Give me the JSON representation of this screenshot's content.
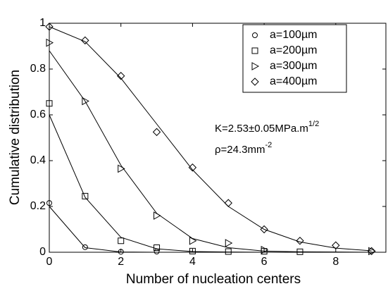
{
  "chart_data": {
    "type": "scatter",
    "x_label": "Number of nucleation centers",
    "y_label": "Cumulative distribution",
    "x": [
      0,
      1,
      2,
      3,
      4,
      5,
      6,
      7,
      8,
      9
    ],
    "series": [
      {
        "name": "a=100µm",
        "marker": "circle",
        "color": "#000000",
        "values": [
          0.215,
          0.022,
          0.002,
          0.003,
          null,
          null,
          null,
          null,
          null,
          null
        ],
        "fit": [
          0.2,
          0.02,
          0.001,
          0,
          0,
          0,
          0,
          0,
          0,
          0
        ]
      },
      {
        "name": "a=200µm",
        "marker": "square",
        "color": "#000000",
        "values": [
          0.65,
          0.245,
          0.05,
          0.02,
          0.005,
          0.003,
          0.004,
          0.002,
          null,
          null
        ],
        "fit": [
          0.6,
          0.24,
          0.065,
          0.015,
          0.003,
          0.001,
          0,
          0,
          0,
          0
        ]
      },
      {
        "name": "a=300µm",
        "marker": "triangle-right",
        "color": "#000000",
        "values": [
          0.915,
          0.66,
          0.365,
          0.16,
          0.05,
          0.04,
          0.01,
          null,
          null,
          0.005
        ],
        "fit": [
          0.88,
          0.66,
          0.38,
          0.17,
          0.06,
          0.02,
          0.005,
          0.002,
          0.001,
          0
        ]
      },
      {
        "name": "a=400µm",
        "marker": "diamond",
        "color": "#000000",
        "values": [
          0.985,
          0.925,
          0.77,
          0.525,
          0.37,
          0.215,
          0.1,
          0.05,
          0.03,
          0.005
        ],
        "fit": [
          0.985,
          0.92,
          0.76,
          0.56,
          0.36,
          0.2,
          0.1,
          0.045,
          0.018,
          0.006
        ]
      }
    ],
    "xlim": [
      0,
      9.4
    ],
    "xticks": [
      0,
      2,
      4,
      6,
      8
    ],
    "ylim": [
      0,
      1
    ],
    "yticks": [
      0,
      0.2,
      0.4,
      0.6,
      0.8,
      1
    ],
    "legend": "upper right",
    "annotations": [
      {
        "text": "K=2.53±0.05MPa.m",
        "sup": "1/2"
      },
      {
        "text": "ρ=24.3mm",
        "sup": "-2"
      }
    ]
  }
}
